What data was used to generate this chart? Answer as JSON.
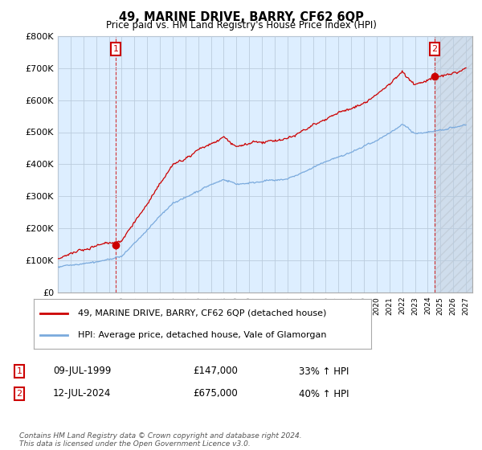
{
  "title": "49, MARINE DRIVE, BARRY, CF62 6QP",
  "subtitle": "Price paid vs. HM Land Registry's House Price Index (HPI)",
  "footer": "Contains HM Land Registry data © Crown copyright and database right 2024.\nThis data is licensed under the Open Government Licence v3.0.",
  "legend_line1": "49, MARINE DRIVE, BARRY, CF62 6QP (detached house)",
  "legend_line2": "HPI: Average price, detached house, Vale of Glamorgan",
  "transaction1_label": "1",
  "transaction1_date": "09-JUL-1999",
  "transaction1_price": "£147,000",
  "transaction1_hpi": "33% ↑ HPI",
  "transaction2_label": "2",
  "transaction2_date": "12-JUL-2024",
  "transaction2_price": "£675,000",
  "transaction2_hpi": "40% ↑ HPI",
  "hpi_color": "#7aaadd",
  "price_color": "#cc0000",
  "bg_chart_color": "#ddeeff",
  "background_color": "#ffffff",
  "grid_color": "#bbccdd",
  "ylim": [
    0,
    800000
  ],
  "yticks": [
    0,
    100000,
    200000,
    300000,
    400000,
    500000,
    600000,
    700000,
    800000
  ],
  "ytick_labels": [
    "£0",
    "£100K",
    "£200K",
    "£300K",
    "£400K",
    "£500K",
    "£600K",
    "£700K",
    "£800K"
  ],
  "transaction1_year": 1999.53,
  "transaction1_value": 147000,
  "transaction2_year": 2024.53,
  "transaction2_value": 675000,
  "hatch_start": 2024.53,
  "xlim_start": 1995,
  "xlim_end": 2027.5
}
